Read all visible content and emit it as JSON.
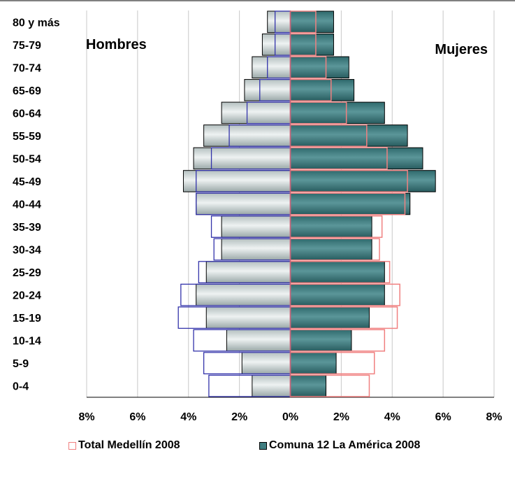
{
  "chart_data": {
    "type": "bar",
    "orientation": "horizontal",
    "subtype": "population-pyramid",
    "categories": [
      "0-4",
      "5-9",
      "10-14",
      "15-19",
      "20-24",
      "25-29",
      "30-34",
      "35-39",
      "40-44",
      "45-49",
      "50-54",
      "55-59",
      "60-64",
      "65-69",
      "70-74",
      "75-79",
      "80 y más"
    ],
    "annotations": {
      "left": "Hombres",
      "right": "Mujeres"
    },
    "series": [
      {
        "name": "Total Medellín 2008",
        "men": [
          3.2,
          3.4,
          3.8,
          4.4,
          4.3,
          3.6,
          3.0,
          3.1,
          3.7,
          3.7,
          3.1,
          2.4,
          1.7,
          1.2,
          0.9,
          0.6,
          0.6
        ],
        "women": [
          3.1,
          3.3,
          3.7,
          4.2,
          4.3,
          3.9,
          3.5,
          3.6,
          4.5,
          4.6,
          3.8,
          3.0,
          2.2,
          1.6,
          1.4,
          1.0,
          1.0
        ]
      },
      {
        "name": "Comuna 12 La América 2008",
        "men": [
          1.5,
          1.9,
          2.5,
          3.3,
          3.7,
          3.3,
          2.7,
          2.7,
          3.7,
          4.2,
          3.8,
          3.4,
          2.7,
          1.8,
          1.5,
          1.1,
          0.9
        ],
        "women": [
          1.4,
          1.8,
          2.4,
          3.1,
          3.7,
          3.7,
          3.2,
          3.2,
          4.7,
          5.7,
          5.2,
          4.6,
          3.7,
          2.5,
          2.3,
          1.7,
          1.7
        ]
      }
    ],
    "x_ticks": [
      "8%",
      "6%",
      "4%",
      "2%",
      "0%",
      "2%",
      "4%",
      "6%",
      "8%"
    ],
    "xlim": [
      -8,
      8
    ],
    "grid": "vertical",
    "legend_position": "bottom"
  },
  "legend": {
    "items": [
      {
        "label": "Total Medellín 2008",
        "border": "#f08080",
        "fill": "#ffffff"
      },
      {
        "label": "Comuna 12 La América 2008",
        "border": "#000000",
        "fill": "#3f7d80"
      }
    ]
  },
  "colors": {
    "total_women_outline": "#f08080",
    "total_men_outline": "#3333aa",
    "comuna_men_fill": "#c8d2d2",
    "comuna_women_fill": "#3f7d80",
    "gridline": "#c8c8c8",
    "axis": "#000000",
    "center_line": "#c86478"
  }
}
